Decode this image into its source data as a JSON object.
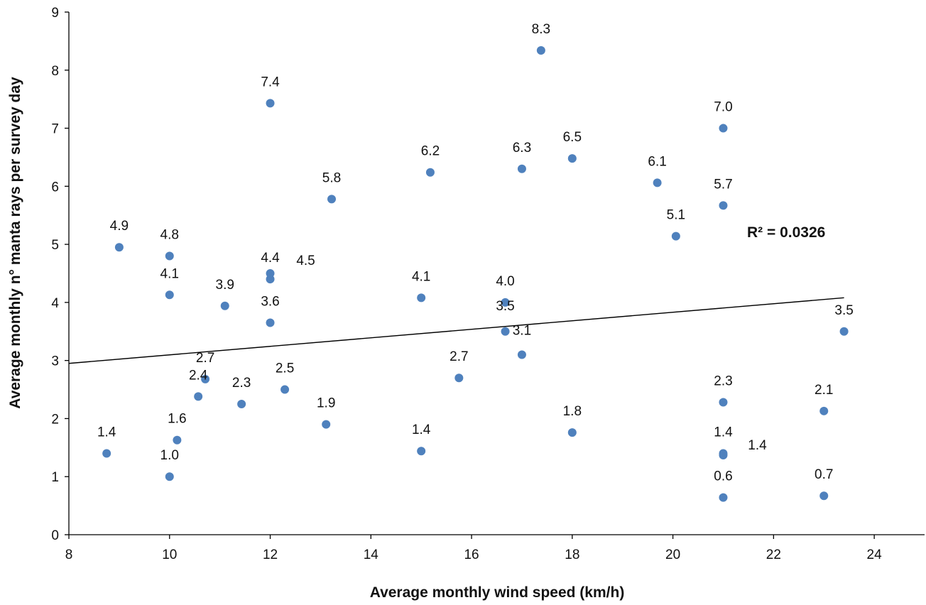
{
  "chart_data": {
    "type": "scatter",
    "xlabel": "Average monthly wind speed (km/h)",
    "ylabel": "Average monthly n° manta rays per survey day",
    "xlim": [
      8,
      25
    ],
    "ylim": [
      0,
      9
    ],
    "x_ticks": [
      8,
      10,
      12,
      14,
      16,
      18,
      20,
      22,
      24
    ],
    "y_ticks": [
      0,
      1,
      2,
      3,
      4,
      5,
      6,
      7,
      8,
      9
    ],
    "grid": false,
    "legend": "none",
    "marker_color": "#4F81BD",
    "series": [
      {
        "points": [
          {
            "x": 8.75,
            "y": 1.4,
            "label": "1.4"
          },
          {
            "x": 9.0,
            "y": 4.95,
            "label": "4.9"
          },
          {
            "x": 10.0,
            "y": 1.0,
            "label": "1.0"
          },
          {
            "x": 10.15,
            "y": 1.63,
            "label": "1.6"
          },
          {
            "x": 10.0,
            "y": 4.13,
            "label": "4.1"
          },
          {
            "x": 10.0,
            "y": 4.8,
            "label": "4.8"
          },
          {
            "x": 10.57,
            "y": 2.38,
            "label": "2.4"
          },
          {
            "x": 10.71,
            "y": 2.68,
            "label": "2.7"
          },
          {
            "x": 11.1,
            "y": 3.94,
            "label": "3.9"
          },
          {
            "x": 11.43,
            "y": 2.25,
            "label": "2.3"
          },
          {
            "x": 12.0,
            "y": 7.43,
            "label": "7.4"
          },
          {
            "x": 12.0,
            "y": 4.4,
            "label": "4.4"
          },
          {
            "x": 12.0,
            "y": 4.5,
            "label": "4.5"
          },
          {
            "x": 12.0,
            "y": 3.65,
            "label": "3.6"
          },
          {
            "x": 12.29,
            "y": 2.5,
            "label": "2.5"
          },
          {
            "x": 13.11,
            "y": 1.9,
            "label": "1.9"
          },
          {
            "x": 13.22,
            "y": 5.78,
            "label": "5.8"
          },
          {
            "x": 15.0,
            "y": 4.08,
            "label": "4.1"
          },
          {
            "x": 15.0,
            "y": 1.44,
            "label": "1.4"
          },
          {
            "x": 15.18,
            "y": 6.24,
            "label": "6.2"
          },
          {
            "x": 15.75,
            "y": 2.7,
            "label": "2.7"
          },
          {
            "x": 16.67,
            "y": 4.0,
            "label": "4.0"
          },
          {
            "x": 16.67,
            "y": 3.5,
            "label": "3.5"
          },
          {
            "x": 17.0,
            "y": 6.3,
            "label": "6.3"
          },
          {
            "x": 17.0,
            "y": 3.1,
            "label": "3.1"
          },
          {
            "x": 17.38,
            "y": 8.34,
            "label": "8.3"
          },
          {
            "x": 18.0,
            "y": 6.48,
            "label": "6.5"
          },
          {
            "x": 18.0,
            "y": 1.76,
            "label": "1.8"
          },
          {
            "x": 19.69,
            "y": 6.06,
            "label": "6.1"
          },
          {
            "x": 20.06,
            "y": 5.14,
            "label": "5.1"
          },
          {
            "x": 21.0,
            "y": 7.0,
            "label": "7.0"
          },
          {
            "x": 21.0,
            "y": 5.67,
            "label": "5.7"
          },
          {
            "x": 21.0,
            "y": 2.28,
            "label": "2.3"
          },
          {
            "x": 21.0,
            "y": 1.4,
            "label": "1.4"
          },
          {
            "x": 21.0,
            "y": 1.37,
            "label": "1.4"
          },
          {
            "x": 21.0,
            "y": 0.64,
            "label": "0.6"
          },
          {
            "x": 23.0,
            "y": 2.13,
            "label": "2.1"
          },
          {
            "x": 23.0,
            "y": 0.67,
            "label": "0.7"
          },
          {
            "x": 23.4,
            "y": 3.5,
            "label": "3.5"
          }
        ]
      }
    ],
    "trendline": {
      "type": "linear",
      "x": [
        8,
        23.4
      ],
      "y": [
        2.95,
        4.08
      ]
    },
    "annotations": [
      {
        "text": "R² = 0.0326"
      }
    ]
  }
}
